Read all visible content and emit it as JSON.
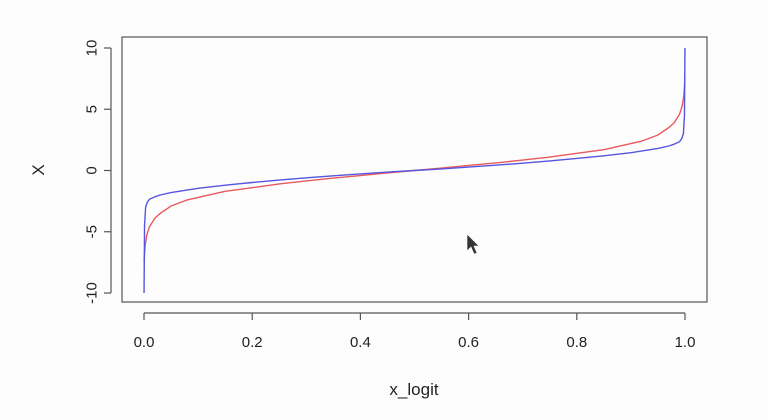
{
  "chart_data": {
    "type": "line",
    "title": "",
    "xlabel": "x_logit",
    "ylabel": "X",
    "xlim": [
      0,
      1
    ],
    "ylim": [
      -10,
      10
    ],
    "x_ticks": [
      0.0,
      0.2,
      0.4,
      0.6,
      0.8,
      1.0
    ],
    "x_tick_labels": [
      "0.0",
      "0.2",
      "0.4",
      "0.6",
      "0.8",
      "1.0"
    ],
    "y_ticks": [
      -10,
      -5,
      0,
      5,
      10
    ],
    "y_tick_labels": [
      "-10",
      "-5",
      "0",
      "5",
      "10"
    ],
    "grid": false,
    "legend": "none",
    "series": [
      {
        "color": "#e8595c",
        "x": [
          0.0001,
          0.002,
          0.005,
          0.01,
          0.02,
          0.03,
          0.05,
          0.08,
          0.1,
          0.15,
          0.2,
          0.25,
          0.3,
          0.35,
          0.4,
          0.45,
          0.5,
          0.55,
          0.6,
          0.65,
          0.7,
          0.75,
          0.8,
          0.85,
          0.9,
          0.92,
          0.95,
          0.97,
          0.98,
          0.99,
          0.995,
          0.998,
          0.9999
        ],
        "y": [
          -7.5,
          -6.2,
          -5.3,
          -4.6,
          -3.9,
          -3.5,
          -2.9,
          -2.4,
          -2.2,
          -1.7,
          -1.4,
          -1.1,
          -0.85,
          -0.62,
          -0.41,
          -0.2,
          0.0,
          0.2,
          0.41,
          0.62,
          0.85,
          1.1,
          1.4,
          1.7,
          2.2,
          2.4,
          2.9,
          3.5,
          3.9,
          4.6,
          5.3,
          6.2,
          7.5
        ]
      },
      {
        "color": "#5555e0",
        "x": [
          0.0001,
          0.001,
          0.003,
          0.006,
          0.01,
          0.02,
          0.03,
          0.05,
          0.1,
          0.15,
          0.2,
          0.25,
          0.3,
          0.35,
          0.4,
          0.45,
          0.5,
          0.55,
          0.6,
          0.65,
          0.7,
          0.75,
          0.8,
          0.85,
          0.9,
          0.95,
          0.97,
          0.98,
          0.99,
          0.994,
          0.997,
          0.999,
          0.9999
        ],
        "y": [
          -10,
          -4.5,
          -3.0,
          -2.6,
          -2.35,
          -2.15,
          -2.0,
          -1.8,
          -1.45,
          -1.2,
          -0.98,
          -0.78,
          -0.6,
          -0.43,
          -0.28,
          -0.13,
          0.0,
          0.13,
          0.28,
          0.43,
          0.6,
          0.78,
          0.98,
          1.2,
          1.45,
          1.8,
          2.0,
          2.15,
          2.35,
          2.6,
          3.0,
          4.5,
          10
        ]
      }
    ]
  }
}
